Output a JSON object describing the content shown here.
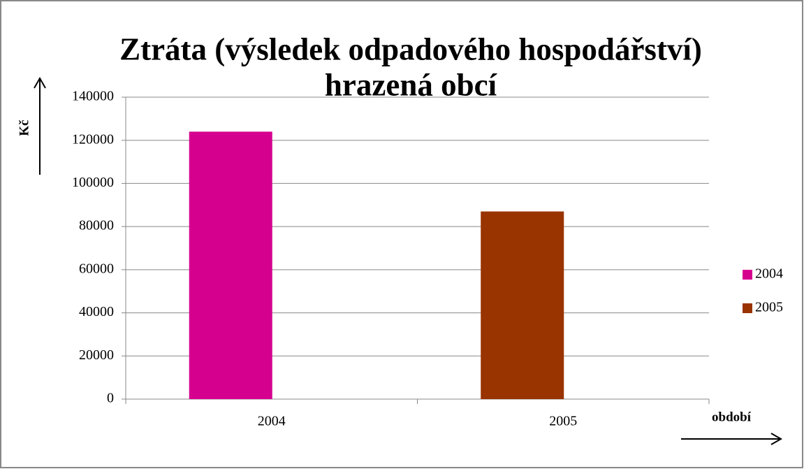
{
  "chart_data": {
    "type": "bar",
    "title": [
      "Ztráta (výsledek odpadového hospodářství)",
      "hrazená obcí"
    ],
    "y_label": "Kč",
    "x_label": "období",
    "categories": [
      "2004",
      "2005"
    ],
    "series": [
      {
        "name": "2004",
        "color": "#d6008f",
        "values": [
          124000,
          null
        ]
      },
      {
        "name": "2005",
        "color": "#993300",
        "values": [
          null,
          87000
        ]
      }
    ],
    "ylim": [
      0,
      140000
    ],
    "yticks": [
      0,
      20000,
      40000,
      60000,
      80000,
      100000,
      120000,
      140000
    ],
    "grid": true,
    "legend": "right"
  }
}
